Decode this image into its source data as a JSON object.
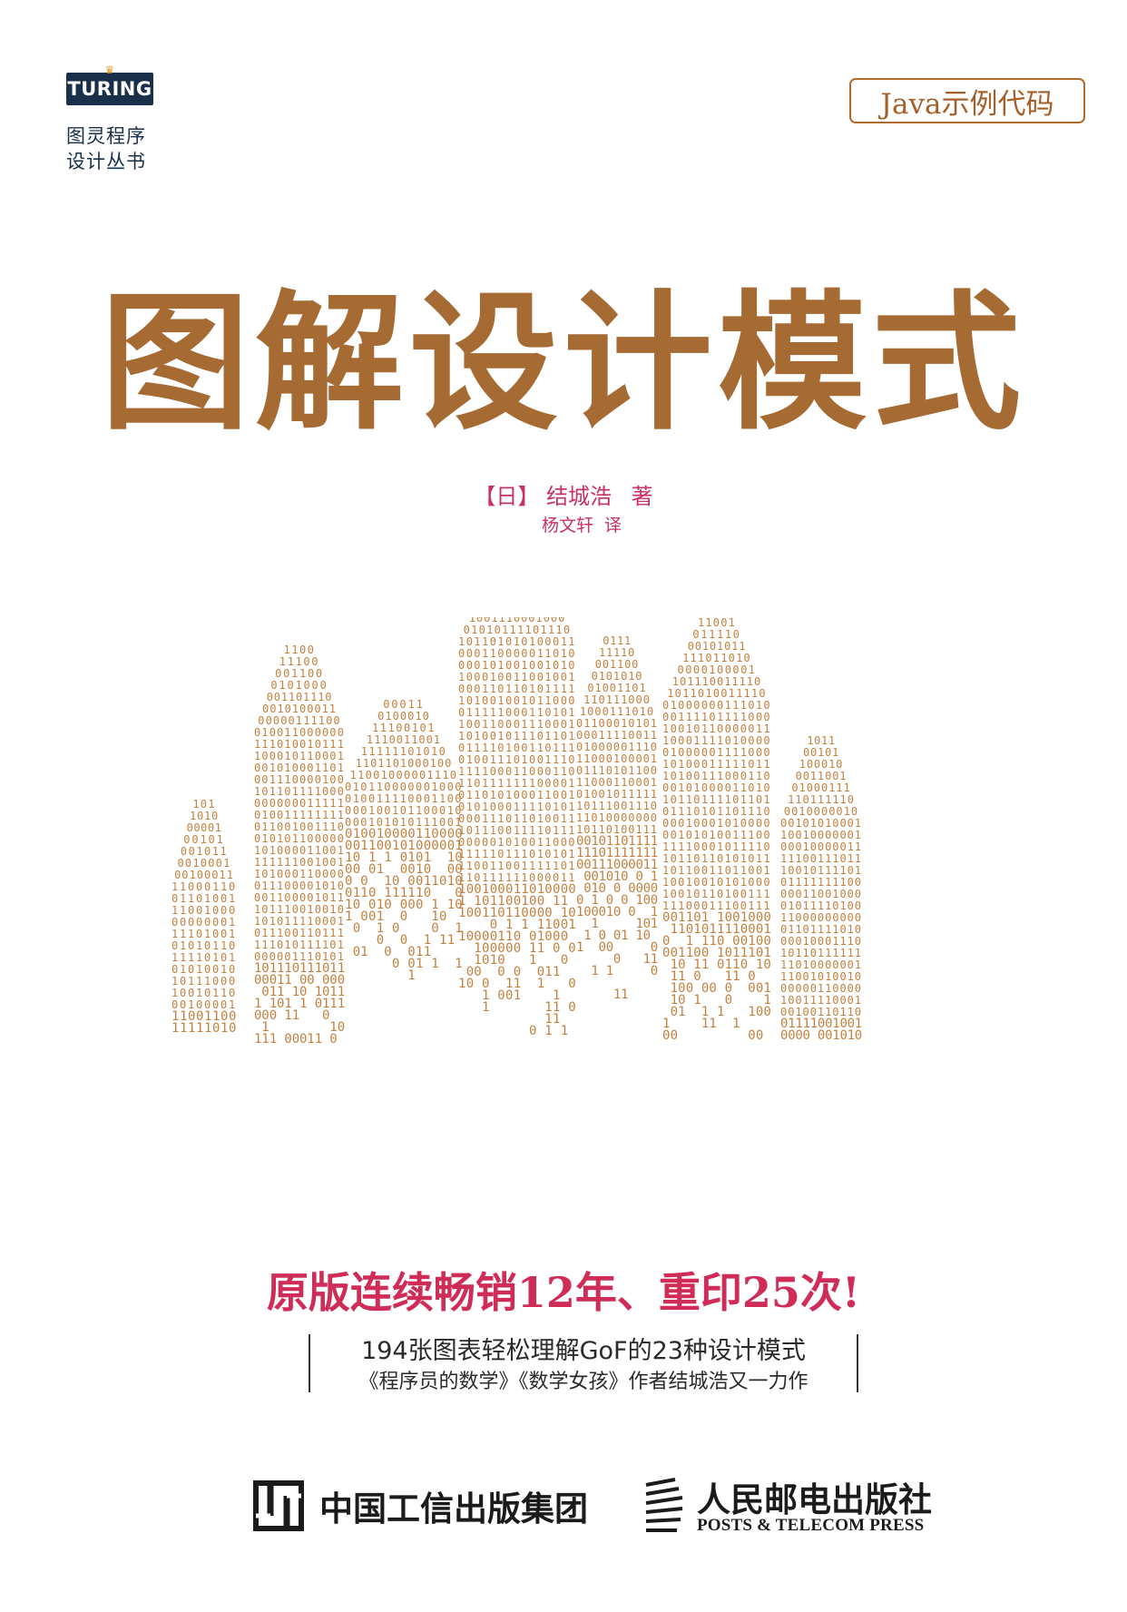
{
  "series": {
    "logo_text": "TURING",
    "line1": "图灵程序",
    "line2": "设计丛书"
  },
  "tag": "Java示例代码",
  "title": "图解设计模式",
  "author": {
    "country": "【日】",
    "name": "结城浩",
    "role": "著"
  },
  "translator": {
    "name": "杨文轩",
    "role": "译"
  },
  "slogan": "原版连续畅销12年、重印25次!",
  "features": [
    "194张图表轻松理解GoF的23种设计模式",
    "《程序员的数学》《数学女孩》作者结城浩又一力作"
  ],
  "publishers": {
    "group_name": "中国工信出版集团",
    "press_name_cn": "人民邮电出版社",
    "press_name_en": "POSTS & TELECOM PRESS"
  },
  "colors": {
    "title": "#a66a33",
    "accent": "#cf2c58",
    "binary": "#c2803f",
    "navy": "#1a2f4a"
  }
}
